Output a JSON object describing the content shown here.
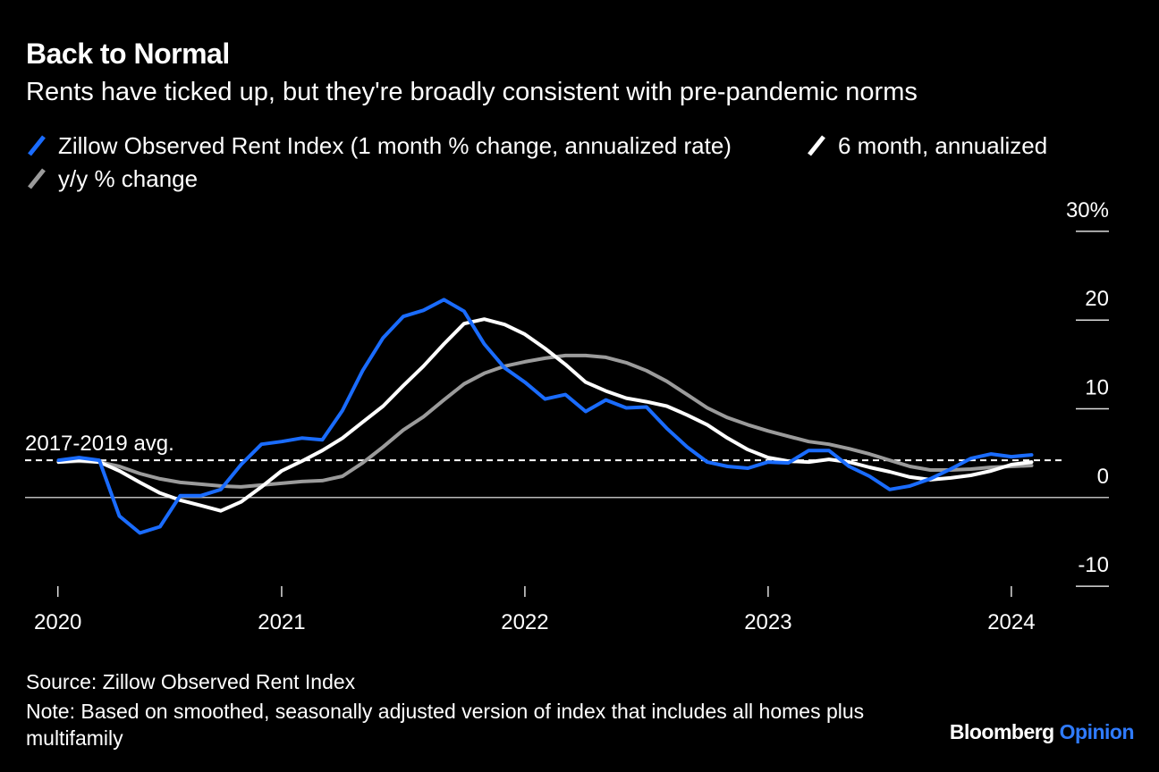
{
  "chart_data": {
    "type": "line",
    "title": "Back to Normal",
    "subtitle": "Rents have ticked up, but they're broadly consistent with pre-pandemic norms",
    "source": "Source: Zillow Observed Rent Index",
    "note": "Note: Based on smoothed, seasonally adjusted version of index that includes all homes plus multifamily",
    "brand": "Bloomberg",
    "brand_sub": "Opinion",
    "x": [
      2020.083,
      2020.167,
      2020.25,
      2020.333,
      2020.417,
      2020.5,
      2020.583,
      2020.667,
      2020.75,
      2020.833,
      2020.917,
      2021,
      2021.083,
      2021.167,
      2021.25,
      2021.333,
      2021.417,
      2021.5,
      2021.583,
      2021.667,
      2021.75,
      2021.833,
      2021.917,
      2022,
      2022.083,
      2022.167,
      2022.25,
      2022.333,
      2022.417,
      2022.5,
      2022.583,
      2022.667,
      2022.75,
      2022.833,
      2022.917,
      2023,
      2023.083,
      2023.167,
      2023.25,
      2023.333,
      2023.417,
      2023.5,
      2023.583,
      2023.667,
      2023.75,
      2023.833,
      2023.917,
      2024,
      2024.083
    ],
    "series": [
      {
        "name": "Zillow Observed Rent Index (1 month % change, annualized rate)",
        "color": "#1a6cff",
        "values": [
          4.2,
          4.5,
          4.2,
          -2.1,
          -4.0,
          -3.3,
          0.2,
          0.2,
          0.9,
          3.7,
          6.0,
          6.3,
          6.7,
          6.5,
          9.8,
          14.3,
          18.0,
          20.4,
          21.1,
          22.3,
          21.0,
          17.3,
          14.6,
          13.0,
          11.1,
          11.6,
          9.7,
          11.0,
          10.1,
          10.2,
          7.8,
          5.7,
          4.0,
          3.5,
          3.3,
          4.0,
          3.9,
          5.3,
          5.3,
          3.5,
          2.4,
          0.9,
          1.3,
          2.1,
          3.2,
          4.4,
          4.9,
          4.6,
          4.8
        ]
      },
      {
        "name": "6 month, annualized",
        "color": "#ffffff",
        "values": [
          4.0,
          4.2,
          4.0,
          3.0,
          1.7,
          0.5,
          -0.3,
          -0.9,
          -1.5,
          -0.5,
          1.2,
          3.0,
          4.1,
          5.3,
          6.7,
          8.5,
          10.3,
          12.6,
          14.8,
          17.3,
          19.6,
          20.1,
          19.5,
          18.4,
          16.8,
          15.0,
          13.0,
          12.0,
          11.2,
          10.8,
          10.3,
          9.3,
          8.2,
          6.7,
          5.4,
          4.5,
          4.1,
          4.0,
          4.3,
          4.0,
          3.4,
          2.9,
          2.3,
          2.0,
          2.2,
          2.5,
          3.0,
          3.7,
          4.0
        ]
      },
      {
        "name": "y/y % change",
        "color": "#9b9b9b",
        "values": [
          4.0,
          4.1,
          4.0,
          3.5,
          2.7,
          2.1,
          1.7,
          1.5,
          1.3,
          1.2,
          1.4,
          1.6,
          1.8,
          1.9,
          2.4,
          3.9,
          5.7,
          7.6,
          9.1,
          11.0,
          12.8,
          14.0,
          14.8,
          15.3,
          15.7,
          16.0,
          16.0,
          15.8,
          15.2,
          14.3,
          13.1,
          11.6,
          10.1,
          9.0,
          8.2,
          7.5,
          6.9,
          6.3,
          6.0,
          5.5,
          4.9,
          4.2,
          3.5,
          3.1,
          3.1,
          3.2,
          3.4,
          3.5,
          3.6
        ]
      }
    ],
    "reference_line": {
      "label": "2017-2019 avg.",
      "value": 4.2
    },
    "xlim": [
      2019.945,
      2024.21
    ],
    "xticks": [
      {
        "value": 2020.08,
        "label": "2020"
      },
      2021,
      2022,
      2023,
      2024
    ],
    "ylim": [
      -10.9,
      30.9
    ],
    "yticks": [
      -10,
      0,
      10,
      20,
      {
        "value": 30,
        "label": "30%"
      }
    ]
  }
}
